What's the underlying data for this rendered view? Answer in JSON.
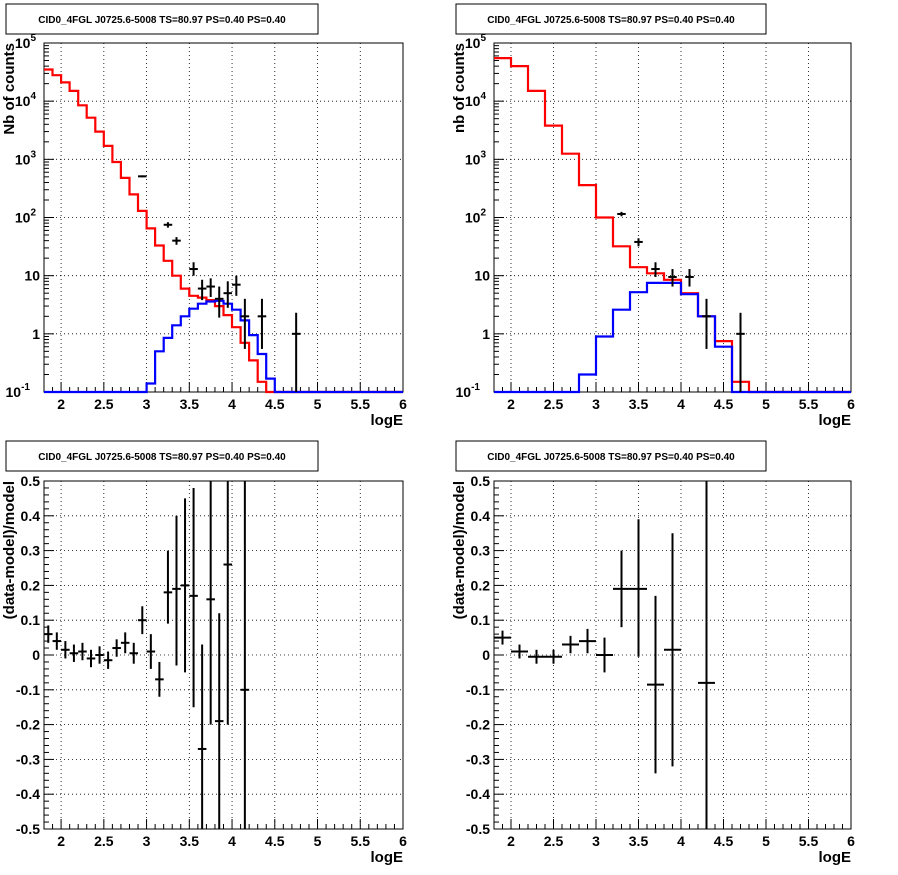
{
  "colors": {
    "data": "#000000",
    "total_model": "#ff0000",
    "source_model": "#0000ff",
    "grid": "#000000",
    "frame": "#000000"
  },
  "chart_data": [
    {
      "type": "histogram",
      "title": "CID0_4FGL J0725.6-5008 TS=80.97 PS=0.40 PS=0.40",
      "xlabel": "logE",
      "ylabel": "Nb of counts",
      "xscale": "linear",
      "yscale": "log",
      "xlim": [
        1.8,
        6.0
      ],
      "ylim": [
        0.1,
        100000
      ],
      "grid": true,
      "xticks": [
        "2",
        "2.5",
        "3",
        "3.5",
        "4",
        "4.5",
        "5",
        "5.5",
        "6"
      ],
      "yticks": [
        "10^-1",
        "1",
        "10",
        "10^2",
        "10^3",
        "10^4",
        "10^5"
      ],
      "bin_edges": [
        1.8,
        1.9,
        2.0,
        2.1,
        2.2,
        2.3,
        2.4,
        2.5,
        2.6,
        2.7,
        2.8,
        2.9,
        3.0,
        3.1,
        3.2,
        3.3,
        3.4,
        3.5,
        3.6,
        3.7,
        3.8,
        3.9,
        4.0,
        4.1,
        4.2,
        4.3,
        4.4,
        4.5,
        4.6,
        4.7,
        4.8,
        4.9,
        5.0,
        5.1,
        5.2,
        5.3,
        5.4,
        5.5,
        5.6,
        5.7,
        5.8,
        5.9,
        6.0
      ],
      "series": [
        {
          "role": "total_model",
          "values": [
            35000,
            28000,
            21000,
            15000,
            8500,
            5200,
            3000,
            1700,
            900,
            480,
            250,
            130,
            65,
            33,
            18,
            10,
            6,
            4.5,
            4.2,
            3.8,
            3.0,
            2.1,
            1.3,
            0.7,
            0.35,
            0.15,
            0.1,
            0.1,
            0.1,
            0.1,
            0.1,
            0.1,
            0.1,
            0.1,
            0.1,
            0.1,
            0.1,
            0.1,
            0.1,
            0.1,
            0.1,
            0.1
          ]
        },
        {
          "role": "source_model",
          "values": [
            0.1,
            0.1,
            0.1,
            0.1,
            0.1,
            0.1,
            0.1,
            0.1,
            0.1,
            0.1,
            0.1,
            0.1,
            0.14,
            0.5,
            0.85,
            1.4,
            2.0,
            2.7,
            3.3,
            3.6,
            3.7,
            3.3,
            2.6,
            1.7,
            0.95,
            0.45,
            0.17,
            0.1,
            0.1,
            0.1,
            0.1,
            0.1,
            0.1,
            0.1,
            0.1,
            0.1,
            0.1,
            0.1,
            0.1,
            0.1,
            0.1,
            0.1
          ]
        },
        {
          "role": "data",
          "points": [
            {
              "x": 2.95,
              "y": 510,
              "lo": 490,
              "hi": 530
            },
            {
              "x": 3.25,
              "y": 75,
              "lo": 67,
              "hi": 83
            },
            {
              "x": 3.35,
              "y": 40,
              "lo": 34,
              "hi": 46
            },
            {
              "x": 3.55,
              "y": 13,
              "lo": 10,
              "hi": 17
            },
            {
              "x": 3.65,
              "y": 6.0,
              "lo": 3.8,
              "hi": 8.5
            },
            {
              "x": 3.75,
              "y": 6.5,
              "lo": 4.3,
              "hi": 9.0
            },
            {
              "x": 3.85,
              "y": 4.0,
              "lo": 1.9,
              "hi": 6.5
            },
            {
              "x": 3.95,
              "y": 5.0,
              "lo": 2.8,
              "hi": 8.0
            },
            {
              "x": 4.05,
              "y": 7.0,
              "lo": 4.5,
              "hi": 10
            },
            {
              "x": 4.15,
              "y": 2.0,
              "lo": 0.55,
              "hi": 4.0
            },
            {
              "x": 4.35,
              "y": 2.0,
              "lo": 0.55,
              "hi": 4.0
            },
            {
              "x": 4.75,
              "y": 1.0,
              "lo": 0.1,
              "hi": 2.3
            }
          ]
        }
      ]
    },
    {
      "type": "histogram",
      "title": "CID0_4FGL J0725.6-5008 TS=80.97 PS=0.40 PS=0.40",
      "xlabel": "logE",
      "ylabel": "nb of counts",
      "xscale": "linear",
      "yscale": "log",
      "xlim": [
        1.8,
        6.0
      ],
      "ylim": [
        0.1,
        100000
      ],
      "grid": true,
      "xticks": [
        "2",
        "2.5",
        "3",
        "3.5",
        "4",
        "4.5",
        "5",
        "5.5",
        "6"
      ],
      "yticks": [
        "10^-1",
        "1",
        "10",
        "10^2",
        "10^3",
        "10^4",
        "10^5"
      ],
      "bin_edges": [
        1.8,
        2.0,
        2.2,
        2.4,
        2.6,
        2.8,
        3.0,
        3.2,
        3.4,
        3.6,
        3.8,
        4.0,
        4.2,
        4.4,
        4.6,
        4.8,
        5.0,
        5.2,
        5.4,
        5.6,
        5.8,
        6.0
      ],
      "series": [
        {
          "role": "total_model",
          "values": [
            55000,
            40000,
            15000,
            3800,
            1250,
            360,
            100,
            32,
            14,
            11,
            8.5,
            5,
            2,
            0.75,
            0.15,
            0.1,
            0.1,
            0.1,
            0.1,
            0.1,
            0.1
          ]
        },
        {
          "role": "source_model",
          "values": [
            0.1,
            0.1,
            0.1,
            0.1,
            0.1,
            0.2,
            0.9,
            2.6,
            5.2,
            7.5,
            7.5,
            4.8,
            2.0,
            0.6,
            0.1,
            0.1,
            0.1,
            0.1,
            0.1,
            0.1,
            0.1
          ]
        },
        {
          "role": "data",
          "points": [
            {
              "x": 3.3,
              "y": 115,
              "lo": 105,
              "hi": 125
            },
            {
              "x": 3.5,
              "y": 38,
              "lo": 32,
              "hi": 44
            },
            {
              "x": 3.7,
              "y": 13,
              "lo": 9.5,
              "hi": 17
            },
            {
              "x": 3.9,
              "y": 9.5,
              "lo": 6.5,
              "hi": 13
            },
            {
              "x": 4.1,
              "y": 9.5,
              "lo": 6.5,
              "hi": 13
            },
            {
              "x": 4.3,
              "y": 2.0,
              "lo": 0.55,
              "hi": 4.0
            },
            {
              "x": 4.7,
              "y": 1.0,
              "lo": 0.1,
              "hi": 2.3
            }
          ]
        }
      ]
    },
    {
      "type": "scatter",
      "title": "CID0_4FGL J0725.6-5008 TS=80.97 PS=0.40 PS=0.40",
      "xlabel": "logE",
      "ylabel": "(data-model)/model",
      "xscale": "linear",
      "yscale": "linear",
      "xlim": [
        1.8,
        6.0
      ],
      "ylim": [
        -0.5,
        0.5
      ],
      "grid": true,
      "xticks": [
        "2",
        "2.5",
        "3",
        "3.5",
        "4",
        "4.5",
        "5",
        "5.5",
        "6"
      ],
      "yticks": [
        "-0.5",
        "-0.4",
        "-0.3",
        "-0.2",
        "-0.1",
        "0",
        "0.1",
        "0.2",
        "0.3",
        "0.4",
        "0.5"
      ],
      "series": [
        {
          "role": "data",
          "xerr": 0.05,
          "points": [
            {
              "x": 1.85,
              "y": 0.06,
              "lo": 0.035,
              "hi": 0.085
            },
            {
              "x": 1.95,
              "y": 0.04,
              "lo": 0.015,
              "hi": 0.065
            },
            {
              "x": 2.05,
              "y": 0.015,
              "lo": -0.01,
              "hi": 0.04
            },
            {
              "x": 2.15,
              "y": 0.005,
              "lo": -0.02,
              "hi": 0.03
            },
            {
              "x": 2.25,
              "y": 0.01,
              "lo": -0.015,
              "hi": 0.035
            },
            {
              "x": 2.35,
              "y": -0.01,
              "lo": -0.035,
              "hi": 0.015
            },
            {
              "x": 2.45,
              "y": 0.0,
              "lo": -0.025,
              "hi": 0.025
            },
            {
              "x": 2.55,
              "y": -0.015,
              "lo": -0.04,
              "hi": 0.01
            },
            {
              "x": 2.65,
              "y": 0.02,
              "lo": -0.005,
              "hi": 0.045
            },
            {
              "x": 2.75,
              "y": 0.035,
              "lo": 0.005,
              "hi": 0.065
            },
            {
              "x": 2.85,
              "y": 0.005,
              "lo": -0.025,
              "hi": 0.035
            },
            {
              "x": 2.95,
              "y": 0.1,
              "lo": 0.06,
              "hi": 0.14
            },
            {
              "x": 3.05,
              "y": 0.01,
              "lo": -0.04,
              "hi": 0.06
            },
            {
              "x": 3.15,
              "y": -0.07,
              "lo": -0.12,
              "hi": -0.02
            },
            {
              "x": 3.25,
              "y": 0.18,
              "lo": 0.09,
              "hi": 0.3
            },
            {
              "x": 3.35,
              "y": 0.19,
              "lo": -0.03,
              "hi": 0.4
            },
            {
              "x": 3.45,
              "y": 0.2,
              "lo": -0.05,
              "hi": 0.45
            },
            {
              "x": 3.55,
              "y": 0.17,
              "lo": -0.15,
              "hi": 0.48
            },
            {
              "x": 3.65,
              "y": -0.27,
              "lo": -0.5,
              "hi": 0.03
            },
            {
              "x": 3.75,
              "y": 0.16,
              "lo": -0.2,
              "hi": 0.5
            },
            {
              "x": 3.85,
              "y": -0.19,
              "lo": -0.5,
              "hi": 0.12
            },
            {
              "x": 3.95,
              "y": 0.26,
              "lo": -0.2,
              "hi": 0.5
            },
            {
              "x": 4.15,
              "y": -0.1,
              "lo": -0.5,
              "hi": 0.5
            }
          ]
        }
      ]
    },
    {
      "type": "scatter",
      "title": "CID0_4FGL J0725.6-5008 TS=80.97 PS=0.40 PS=0.40",
      "xlabel": "logE",
      "ylabel": "(data-model)/model",
      "xscale": "linear",
      "yscale": "linear",
      "xlim": [
        1.8,
        6.0
      ],
      "ylim": [
        -0.5,
        0.5
      ],
      "grid": true,
      "xticks": [
        "2",
        "2.5",
        "3",
        "3.5",
        "4",
        "4.5",
        "5",
        "5.5",
        "6"
      ],
      "yticks": [
        "-0.5",
        "-0.4",
        "-0.3",
        "-0.2",
        "-0.1",
        "0",
        "0.1",
        "0.2",
        "0.3",
        "0.4",
        "0.5"
      ],
      "series": [
        {
          "role": "data",
          "xerr": 0.1,
          "points": [
            {
              "x": 1.9,
              "y": 0.05,
              "lo": 0.03,
              "hi": 0.07
            },
            {
              "x": 2.1,
              "y": 0.01,
              "lo": -0.01,
              "hi": 0.03
            },
            {
              "x": 2.3,
              "y": -0.005,
              "lo": -0.025,
              "hi": 0.015
            },
            {
              "x": 2.5,
              "y": -0.005,
              "lo": -0.025,
              "hi": 0.015
            },
            {
              "x": 2.7,
              "y": 0.03,
              "lo": 0.005,
              "hi": 0.055
            },
            {
              "x": 2.9,
              "y": 0.04,
              "lo": 0.005,
              "hi": 0.075
            },
            {
              "x": 3.1,
              "y": 0.0,
              "lo": -0.05,
              "hi": 0.05
            },
            {
              "x": 3.3,
              "y": 0.19,
              "lo": 0.08,
              "hi": 0.3
            },
            {
              "x": 3.5,
              "y": 0.19,
              "lo": -0.005,
              "hi": 0.39
            },
            {
              "x": 3.7,
              "y": -0.085,
              "lo": -0.34,
              "hi": 0.17
            },
            {
              "x": 3.9,
              "y": 0.015,
              "lo": -0.32,
              "hi": 0.35
            },
            {
              "x": 4.3,
              "y": -0.08,
              "lo": -0.5,
              "hi": 0.5
            }
          ]
        }
      ]
    }
  ]
}
